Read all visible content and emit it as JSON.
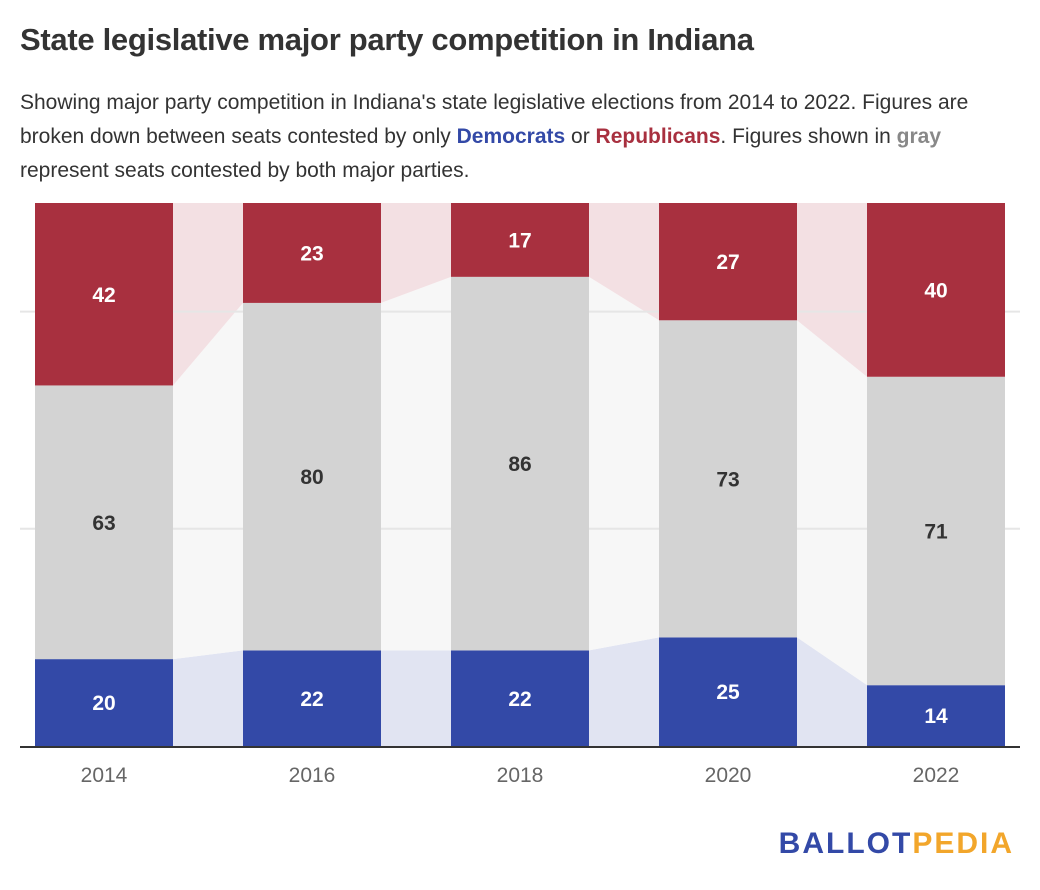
{
  "header": {
    "title": "State legislative major party competition in Indiana",
    "subtitle_part1": "Showing major party competition in Indiana's state legislative elections from 2014 to 2022. Figures are broken down between seats contested by only ",
    "subtitle_dem": "Democrats",
    "subtitle_or": " or ",
    "subtitle_rep": "Republicans",
    "subtitle_part2": ". Figures shown in ",
    "subtitle_gray": "gray",
    "subtitle_part3": " represent seats contested by both major parties."
  },
  "colors": {
    "democrat": "#3349a7",
    "democrat_light": "#e1e4f2",
    "republican": "#a8303f",
    "republican_light": "#f3e0e3",
    "both": "#d3d3d3",
    "both_light": "#f7f7f7",
    "axis": "#333333",
    "grid": "#e6e6e6"
  },
  "chart_data": {
    "type": "bar",
    "stacked": true,
    "normalized": "percent",
    "title": "State legislative major party competition in Indiana",
    "categories": [
      "2014",
      "2016",
      "2018",
      "2020",
      "2022"
    ],
    "series": [
      {
        "name": "Democrats",
        "color": "#3349a7",
        "values": [
          20,
          22,
          22,
          25,
          14
        ]
      },
      {
        "name": "Both major parties",
        "color": "#d3d3d3",
        "values": [
          63,
          80,
          86,
          73,
          71
        ]
      },
      {
        "name": "Republicans",
        "color": "#a8303f",
        "values": [
          42,
          23,
          17,
          27,
          40
        ]
      }
    ],
    "xlabel": "",
    "ylabel": "",
    "ylim": [
      0,
      100
    ],
    "grid": true,
    "legend": "none (inline in subtitle)"
  },
  "logo": {
    "part1": "BALLOT",
    "part2": "PEDIA"
  }
}
